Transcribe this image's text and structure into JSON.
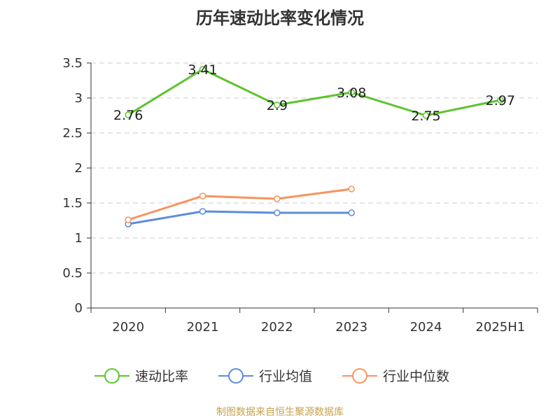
{
  "chart_data": {
    "type": "line",
    "title": "历年速动比率变化情况",
    "categories": [
      "2020",
      "2021",
      "2022",
      "2023",
      "2024",
      "2025H1"
    ],
    "ylim": [
      0,
      3.5
    ],
    "yticks": [
      0,
      0.5,
      1,
      1.5,
      2,
      2.5,
      3,
      3.5
    ],
    "ytick_labels": [
      "0",
      "0.5",
      "1",
      "1.5",
      "2",
      "2.5",
      "3",
      "3.5"
    ],
    "grid": true,
    "legend_position": "bottom",
    "series": [
      {
        "name": "速动比率",
        "color": "#5cc42c",
        "values": [
          2.76,
          3.41,
          2.9,
          3.08,
          2.75,
          2.97
        ],
        "labels": [
          "2.76",
          "3.41",
          "2.9",
          "3.08",
          "2.75",
          "2.97"
        ]
      },
      {
        "name": "行业均值",
        "color": "#5b8ddb",
        "values": [
          1.2,
          1.38,
          1.36,
          1.36,
          null,
          null
        ]
      },
      {
        "name": "行业中位数",
        "color": "#f7935f",
        "values": [
          1.26,
          1.6,
          1.56,
          1.7,
          null,
          null
        ]
      }
    ]
  },
  "source": "制图数据来自恒生聚源数据库"
}
